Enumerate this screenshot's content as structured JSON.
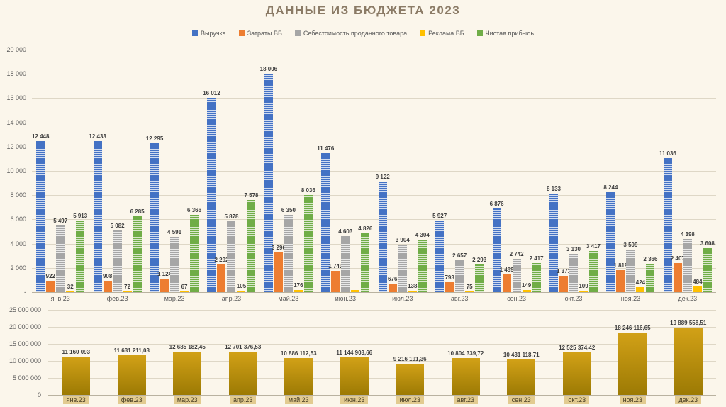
{
  "title": "ДАННЫЕ ИЗ БЮДЖЕТА 2023",
  "chart_data": [
    {
      "type": "bar",
      "title": "ДАННЫЕ ИЗ БЮДЖЕТА 2023",
      "legend_position": "top",
      "grid": true,
      "categories": [
        "янв.23",
        "фев.23",
        "мар.23",
        "апр.23",
        "май.23",
        "июн.23",
        "июл.23",
        "авг.23",
        "сен.23",
        "окт.23",
        "ноя.23",
        "дек.23"
      ],
      "ylim": [
        0,
        20000
      ],
      "yticks": [
        "20 000",
        "18 000",
        "16 000",
        "14 000",
        "12 000",
        "10 000",
        "8 000",
        "6 000",
        "4 000",
        "2 000",
        "-"
      ],
      "series": [
        {
          "key": "revenue",
          "name": "Выручка",
          "color": "#4472C4",
          "stripe": "#cfdbf0",
          "values": [
            12448,
            12433,
            12295,
            16012,
            18006,
            11476,
            9122,
            5927,
            6876,
            8133,
            8244,
            11036
          ],
          "labels": [
            "12 448",
            "12 433",
            "12 295",
            "16 012",
            "18 006",
            "11 476",
            "9 122",
            "5 927",
            "6 876",
            "8 133",
            "8 244",
            "11 036"
          ]
        },
        {
          "key": "wb-costs",
          "name": "Затраты ВБ",
          "color": "#ED7D31",
          "values": [
            922,
            908,
            1124,
            2292,
            3296,
            1743,
            676,
            793,
            1489,
            1373,
            1819,
            2407
          ],
          "labels": [
            "922",
            "908",
            "1 124",
            "2 292",
            "3 296",
            "1 743",
            "676",
            "793",
            "1 489",
            "1 373",
            "1 819",
            "2 407"
          ]
        },
        {
          "key": "cogs",
          "name": "Себестоимость проданного товара",
          "color": "#A6A6A6",
          "stripe": "#e9e9e9",
          "values": [
            5497,
            5082,
            4591,
            5878,
            6350,
            4603,
            3904,
            2657,
            2742,
            3130,
            3509,
            4398
          ],
          "labels": [
            "5 497",
            "5 082",
            "4 591",
            "5 878",
            "6 350",
            "4 603",
            "3 904",
            "2 657",
            "2 742",
            "3 130",
            "3 509",
            "4 398"
          ]
        },
        {
          "key": "wb-ads",
          "name": "Реклама ВБ",
          "color": "#FFC000",
          "values": [
            32,
            72,
            67,
            105,
            176,
            150,
            138,
            75,
            149,
            109,
            424,
            484
          ],
          "labels": [
            "32",
            "72",
            "67",
            "105",
            "176",
            "",
            "138",
            "75",
            "149",
            "109",
            "424",
            "484"
          ]
        },
        {
          "key": "net-profit",
          "name": "Чистая прибыль",
          "color": "#70AD47",
          "stripe": "#d9e8cc",
          "values": [
            5913,
            6285,
            6366,
            7578,
            8036,
            4826,
            4304,
            2293,
            2417,
            3417,
            2366,
            3608
          ],
          "labels": [
            "5 913",
            "6 285",
            "6 366",
            "7 578",
            "8 036",
            "4 826",
            "4 304",
            "2 293",
            "2 417",
            "3 417",
            "2 366",
            "3 608"
          ]
        }
      ]
    },
    {
      "type": "bar",
      "title": "",
      "grid": true,
      "categories": [
        "янв.23",
        "фев.23",
        "мар.23",
        "апр.23",
        "май.23",
        "июн.23",
        "июл.23",
        "авг.23",
        "сен.23",
        "окт.23",
        "ноя.23",
        "дек.23"
      ],
      "ylim": [
        0,
        25000000
      ],
      "yticks": [
        "25 000 000",
        "20 000 000",
        "15 000 000",
        "10 000 000",
        "5 000 000",
        "0"
      ],
      "series": [
        {
          "key": "monthly-total",
          "name": "",
          "color": "#BF8F00",
          "gradient": [
            "#d2a117",
            "#9c7a04"
          ],
          "values": [
            11160093,
            11631211.03,
            12685182.45,
            12701376.53,
            10886112.53,
            11144903.66,
            9216191.36,
            10804339.72,
            10431118.71,
            12525374.42,
            18246116.65,
            19889558.51
          ],
          "labels": [
            "11 160 093",
            "11 631 211,03",
            "12 685 182,45",
            "12 701 376,53",
            "10 886 112,53",
            "11 144 903,66",
            "9 216 191,36",
            "10 804 339,72",
            "10 431 118,71",
            "12 525 374,42",
            "18 246 116,65",
            "19 889 558,51"
          ]
        }
      ]
    }
  ]
}
